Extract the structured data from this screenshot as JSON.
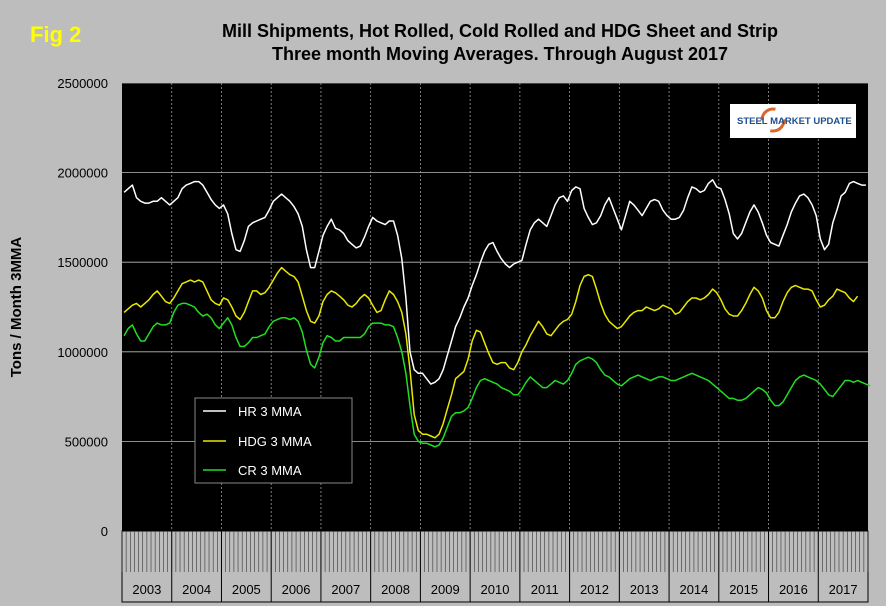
{
  "figure": {
    "label": "Fig 2",
    "title_line1": "Mill Shipments, Hot Rolled, Cold Rolled and HDG Sheet and Strip",
    "title_line2": "Three month Moving Averages. Through August 2017"
  },
  "logo": {
    "text": "STEEL MARKET UPDATE"
  },
  "colors": {
    "background": "#bdbdbd",
    "plot": "#000000",
    "hr": "#ffffff",
    "hdg": "#e8e800",
    "cr": "#22dd22",
    "yellow_label": "#ffff00"
  },
  "chart_data": {
    "type": "line",
    "ylabel": "Tons / Month 3MMA",
    "ylim": [
      0,
      2500000
    ],
    "yticks": [
      "0",
      "500000",
      "1000000",
      "1500000",
      "2000000",
      "2500000"
    ],
    "years": [
      "2003",
      "2004",
      "2005",
      "2006",
      "2007",
      "2008",
      "2009",
      "2010",
      "2011",
      "2012",
      "2013",
      "2014",
      "2015",
      "2016",
      "2017"
    ],
    "x_start": "2003-01",
    "x_end": "2017-08",
    "legend_position": "left",
    "series": [
      {
        "name": "HR 3 MMA",
        "key": "hr",
        "values": [
          1890000,
          1910000,
          1930000,
          1860000,
          1840000,
          1830000,
          1830000,
          1840000,
          1840000,
          1860000,
          1840000,
          1820000,
          1840000,
          1860000,
          1910000,
          1930000,
          1940000,
          1950000,
          1950000,
          1930000,
          1890000,
          1850000,
          1820000,
          1800000,
          1820000,
          1770000,
          1660000,
          1570000,
          1560000,
          1620000,
          1700000,
          1720000,
          1730000,
          1740000,
          1750000,
          1790000,
          1840000,
          1860000,
          1880000,
          1860000,
          1840000,
          1810000,
          1770000,
          1700000,
          1570000,
          1470000,
          1470000,
          1560000,
          1650000,
          1700000,
          1740000,
          1690000,
          1680000,
          1660000,
          1620000,
          1600000,
          1580000,
          1590000,
          1640000,
          1700000,
          1750000,
          1730000,
          1720000,
          1710000,
          1730000,
          1730000,
          1650000,
          1520000,
          1300000,
          1000000,
          900000,
          880000,
          880000,
          850000,
          820000,
          830000,
          850000,
          900000,
          980000,
          1060000,
          1140000,
          1190000,
          1250000,
          1300000,
          1370000,
          1430000,
          1500000,
          1560000,
          1600000,
          1610000,
          1560000,
          1520000,
          1490000,
          1470000,
          1490000,
          1500000,
          1510000,
          1600000,
          1680000,
          1720000,
          1740000,
          1720000,
          1700000,
          1760000,
          1820000,
          1860000,
          1870000,
          1840000,
          1900000,
          1920000,
          1910000,
          1800000,
          1750000,
          1710000,
          1720000,
          1760000,
          1820000,
          1860000,
          1800000,
          1740000,
          1680000,
          1760000,
          1840000,
          1820000,
          1790000,
          1760000,
          1800000,
          1840000,
          1850000,
          1840000,
          1790000,
          1760000,
          1740000,
          1740000,
          1750000,
          1790000,
          1860000,
          1920000,
          1910000,
          1890000,
          1900000,
          1940000,
          1960000,
          1920000,
          1910000,
          1850000,
          1770000,
          1660000,
          1630000,
          1660000,
          1720000,
          1780000,
          1820000,
          1780000,
          1720000,
          1650000,
          1610000,
          1600000,
          1590000,
          1650000,
          1710000,
          1780000,
          1830000,
          1870000,
          1880000,
          1860000,
          1820000,
          1760000,
          1630000,
          1570000,
          1600000,
          1720000,
          1790000,
          1870000,
          1890000,
          1940000,
          1950000,
          1940000,
          1930000,
          1930000
        ]
      },
      {
        "name": "HDG 3 MMA",
        "key": "hdg",
        "values": [
          1220000,
          1240000,
          1260000,
          1270000,
          1250000,
          1270000,
          1290000,
          1320000,
          1340000,
          1310000,
          1280000,
          1270000,
          1300000,
          1340000,
          1380000,
          1390000,
          1400000,
          1390000,
          1400000,
          1390000,
          1340000,
          1290000,
          1270000,
          1260000,
          1300000,
          1290000,
          1250000,
          1200000,
          1180000,
          1220000,
          1280000,
          1340000,
          1340000,
          1320000,
          1330000,
          1360000,
          1400000,
          1440000,
          1470000,
          1450000,
          1430000,
          1420000,
          1390000,
          1310000,
          1230000,
          1170000,
          1160000,
          1200000,
          1280000,
          1320000,
          1340000,
          1330000,
          1310000,
          1290000,
          1260000,
          1250000,
          1270000,
          1300000,
          1320000,
          1300000,
          1260000,
          1220000,
          1230000,
          1290000,
          1340000,
          1320000,
          1280000,
          1220000,
          1100000,
          900000,
          650000,
          560000,
          540000,
          540000,
          530000,
          520000,
          540000,
          600000,
          680000,
          760000,
          850000,
          870000,
          890000,
          960000,
          1060000,
          1120000,
          1110000,
          1050000,
          990000,
          940000,
          930000,
          940000,
          940000,
          910000,
          900000,
          940000,
          1000000,
          1040000,
          1090000,
          1130000,
          1170000,
          1140000,
          1100000,
          1090000,
          1120000,
          1150000,
          1170000,
          1180000,
          1210000,
          1280000,
          1370000,
          1420000,
          1430000,
          1420000,
          1350000,
          1270000,
          1210000,
          1170000,
          1150000,
          1130000,
          1140000,
          1170000,
          1200000,
          1220000,
          1230000,
          1230000,
          1250000,
          1240000,
          1230000,
          1240000,
          1260000,
          1250000,
          1240000,
          1210000,
          1220000,
          1250000,
          1280000,
          1300000,
          1300000,
          1290000,
          1300000,
          1320000,
          1350000,
          1330000,
          1290000,
          1240000,
          1210000,
          1200000,
          1200000,
          1230000,
          1270000,
          1320000,
          1360000,
          1340000,
          1300000,
          1230000,
          1190000,
          1190000,
          1220000,
          1280000,
          1330000,
          1360000,
          1370000,
          1360000,
          1350000,
          1350000,
          1340000,
          1290000,
          1250000,
          1260000,
          1290000,
          1310000,
          1350000,
          1340000,
          1330000,
          1300000,
          1280000,
          1310000
        ]
      },
      {
        "name": "CR 3 MMA",
        "key": "cr",
        "values": [
          1090000,
          1130000,
          1150000,
          1100000,
          1060000,
          1060000,
          1100000,
          1140000,
          1160000,
          1150000,
          1150000,
          1160000,
          1220000,
          1260000,
          1270000,
          1270000,
          1260000,
          1250000,
          1220000,
          1200000,
          1210000,
          1190000,
          1150000,
          1130000,
          1160000,
          1190000,
          1150000,
          1080000,
          1030000,
          1030000,
          1050000,
          1080000,
          1080000,
          1090000,
          1100000,
          1140000,
          1170000,
          1180000,
          1190000,
          1190000,
          1180000,
          1190000,
          1170000,
          1110000,
          1010000,
          930000,
          910000,
          970000,
          1050000,
          1090000,
          1080000,
          1060000,
          1060000,
          1080000,
          1080000,
          1080000,
          1080000,
          1080000,
          1100000,
          1140000,
          1160000,
          1160000,
          1160000,
          1150000,
          1150000,
          1140000,
          1080000,
          1000000,
          880000,
          700000,
          540000,
          500000,
          490000,
          490000,
          480000,
          470000,
          480000,
          520000,
          580000,
          640000,
          660000,
          660000,
          670000,
          690000,
          740000,
          800000,
          840000,
          850000,
          840000,
          830000,
          820000,
          800000,
          790000,
          780000,
          760000,
          760000,
          790000,
          830000,
          860000,
          840000,
          820000,
          800000,
          800000,
          820000,
          840000,
          830000,
          820000,
          840000,
          880000,
          930000,
          950000,
          960000,
          970000,
          960000,
          940000,
          900000,
          870000,
          860000,
          840000,
          820000,
          810000,
          830000,
          850000,
          860000,
          870000,
          860000,
          850000,
          840000,
          850000,
          860000,
          860000,
          850000,
          840000,
          840000,
          850000,
          860000,
          870000,
          880000,
          870000,
          860000,
          850000,
          840000,
          820000,
          800000,
          780000,
          760000,
          740000,
          740000,
          730000,
          730000,
          740000,
          760000,
          780000,
          800000,
          790000,
          770000,
          730000,
          700000,
          700000,
          720000,
          760000,
          800000,
          840000,
          860000,
          870000,
          860000,
          850000,
          840000,
          820000,
          790000,
          760000,
          750000,
          780000,
          810000,
          840000,
          840000,
          830000,
          840000,
          830000,
          820000,
          810000
        ]
      }
    ]
  }
}
